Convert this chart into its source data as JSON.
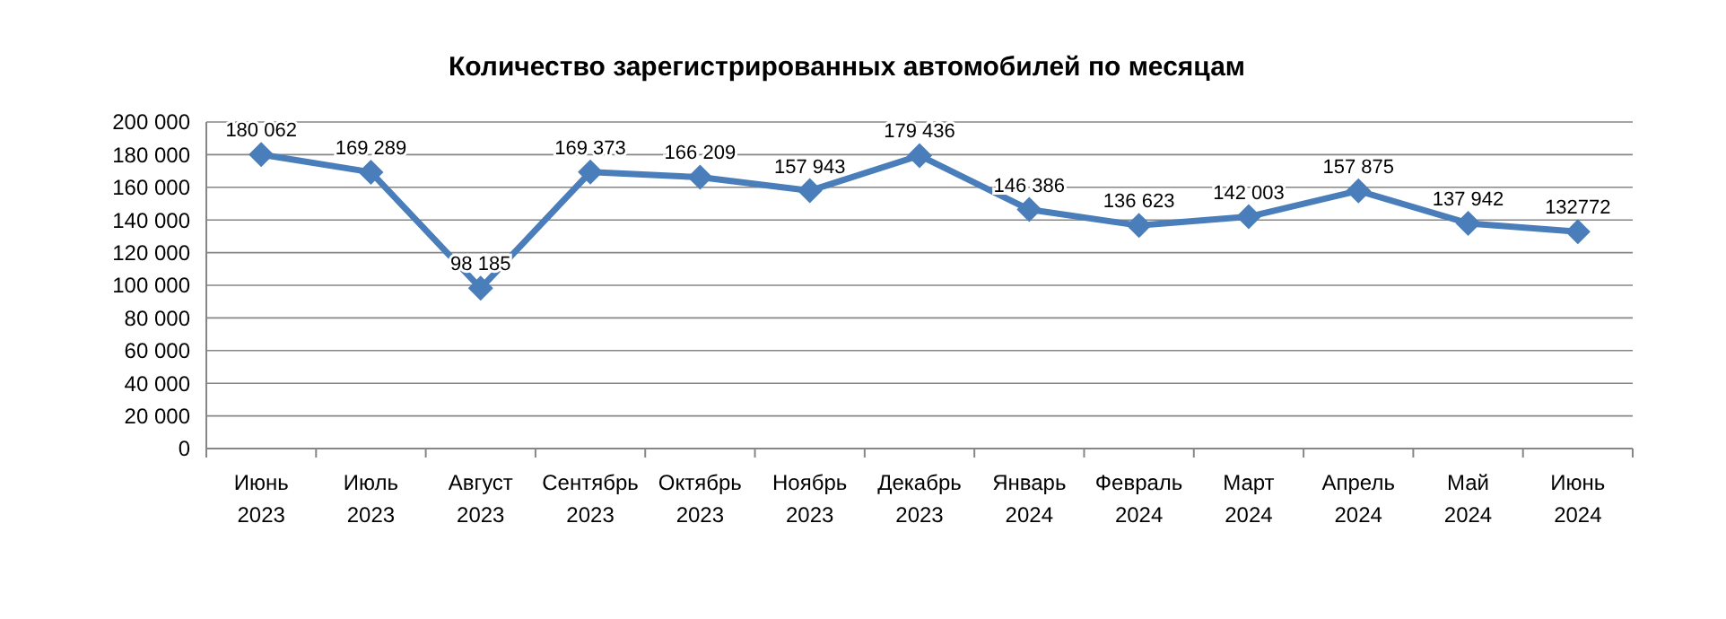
{
  "chart_data": {
    "type": "line",
    "title": "Количество зарегистрированных автомобилей по месяцам",
    "categories": [
      "Июнь 2023",
      "Июль 2023",
      "Август 2023",
      "Сентябрь 2023",
      "Октябрь 2023",
      "Ноябрь 2023",
      "Декабрь 2023",
      "Январь 2024",
      "Февраль 2024",
      "Март 2024",
      "Апрель 2024",
      "Май 2024",
      "Июнь 2024"
    ],
    "series": [
      {
        "color": "#4a7ebb",
        "values": [
          180062,
          169289,
          98185,
          169373,
          166209,
          157943,
          179436,
          146386,
          136623,
          142003,
          157875,
          137942,
          132772
        ],
        "value_labels": [
          "180 062",
          "169 289",
          "98 185",
          "169 373",
          "166 209",
          "157 943",
          "179 436",
          "146 386",
          "136 623",
          "142 003",
          "157 875",
          "137 942",
          "132772"
        ]
      }
    ],
    "ylim": [
      0,
      200000
    ],
    "yticks": [
      {
        "value": 0,
        "label": "0"
      },
      {
        "value": 20000,
        "label": "20 000"
      },
      {
        "value": 40000,
        "label": "40 000"
      },
      {
        "value": 60000,
        "label": "60 000"
      },
      {
        "value": 80000,
        "label": "80 000"
      },
      {
        "value": 100000,
        "label": "100 000"
      },
      {
        "value": 120000,
        "label": "120 000"
      },
      {
        "value": 140000,
        "label": "140 000"
      },
      {
        "value": 160000,
        "label": "160 000"
      },
      {
        "value": 180000,
        "label": "180 000"
      },
      {
        "value": 200000,
        "label": "200 000"
      }
    ],
    "grid": "y",
    "marker": "diamond",
    "line_style": "solid"
  }
}
